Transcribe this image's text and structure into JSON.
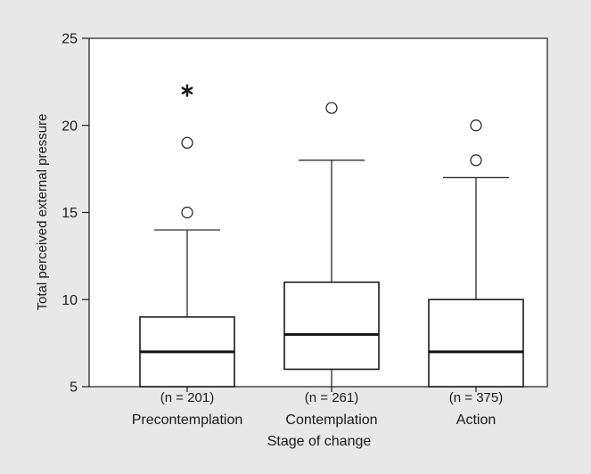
{
  "chart_data": {
    "type": "box",
    "xlabel": "Stage of change",
    "ylabel": "Total perceived external pressure",
    "ylim": [
      5,
      25
    ],
    "yticks": [
      5,
      10,
      15,
      20,
      25
    ],
    "grid": false,
    "background_color": "#e8e8e9",
    "plot_background_color": "#ffffff",
    "groups": [
      {
        "category": "Precontemplation",
        "n_label": "(n = 201)",
        "min": 5,
        "q1": 5,
        "median": 7,
        "q3": 9,
        "max": 14,
        "outliers": [
          15,
          19
        ],
        "extremes": [
          22
        ]
      },
      {
        "category": "Contemplation",
        "n_label": "(n = 261)",
        "min": 5,
        "q1": 6,
        "median": 8,
        "q3": 11,
        "max": 18,
        "outliers": [
          21
        ],
        "extremes": []
      },
      {
        "category": "Action",
        "n_label": "(n = 375)",
        "min": 5,
        "q1": 5,
        "median": 7,
        "q3": 10,
        "max": 17,
        "outliers": [
          18,
          20
        ],
        "extremes": []
      }
    ],
    "outlier_marker": "open-circle",
    "extreme_marker": "asterisk"
  }
}
